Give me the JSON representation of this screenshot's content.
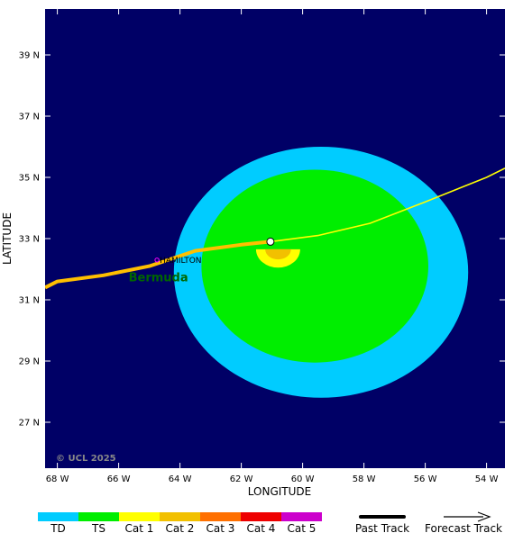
{
  "map": {
    "lon_range": [
      -68.4,
      -53.4
    ],
    "lat_range": [
      25.5,
      40.5
    ],
    "background_color": "#000066",
    "x_axis_title": "LONGITUDE",
    "y_axis_title": "LATITUDE",
    "x_ticks": [
      {
        "value": -68,
        "label": "68 W"
      },
      {
        "value": -66,
        "label": "66 W"
      },
      {
        "value": -64,
        "label": "64 W"
      },
      {
        "value": -62,
        "label": "62 W"
      },
      {
        "value": -60,
        "label": "60 W"
      },
      {
        "value": -58,
        "label": "58 W"
      },
      {
        "value": -56,
        "label": "56 W"
      },
      {
        "value": -54,
        "label": "54 W"
      }
    ],
    "y_ticks": [
      {
        "value": 39,
        "label": "39 N"
      },
      {
        "value": 37,
        "label": "37 N"
      },
      {
        "value": 35,
        "label": "35 N"
      },
      {
        "value": 33,
        "label": "33 N"
      },
      {
        "value": 31,
        "label": "31 N"
      },
      {
        "value": 29,
        "label": "29 N"
      },
      {
        "value": 27,
        "label": "27 N"
      }
    ],
    "copyright": "© UCL 2025"
  },
  "wind_field": {
    "center": {
      "lon": -59.4,
      "lat": 31.9
    },
    "td_zone": {
      "color": "#00ccff",
      "radius_lon": 4.8,
      "radius_lat": 4.1
    },
    "ts_zone": {
      "color": "#00ee00",
      "center": {
        "lon": -59.6,
        "lat": 32.1
      },
      "radius_lon": 3.7,
      "radius_lat": 3.15
    },
    "cat1_zone": {
      "color": "#ffff00",
      "center": {
        "lon": -60.8,
        "lat": 32.65
      },
      "radius_lon": 0.72,
      "radius_lat": 0.6
    },
    "cat2_zone": {
      "color": "#f2c000",
      "center": {
        "lon": -60.8,
        "lat": 32.65
      },
      "radius_lon": 0.42,
      "radius_lat": 0.33
    }
  },
  "storm_center": {
    "lon": -61.05,
    "lat": 32.9
  },
  "past_track": {
    "color": "#ffbf00",
    "points": [
      {
        "lon": -68.4,
        "lat": 31.4
      },
      {
        "lon": -68.0,
        "lat": 31.6
      },
      {
        "lon": -66.5,
        "lat": 31.8
      },
      {
        "lon": -65.0,
        "lat": 32.1
      },
      {
        "lon": -63.5,
        "lat": 32.6
      },
      {
        "lon": -62.0,
        "lat": 32.8
      },
      {
        "lon": -61.05,
        "lat": 32.9
      }
    ]
  },
  "forecast_track": {
    "color": "#ffff00",
    "points": [
      {
        "lon": -61.05,
        "lat": 32.9
      },
      {
        "lon": -59.5,
        "lat": 33.1
      },
      {
        "lon": -57.8,
        "lat": 33.5
      },
      {
        "lon": -56.0,
        "lat": 34.2
      },
      {
        "lon": -54.0,
        "lat": 35.0
      },
      {
        "lon": -53.4,
        "lat": 35.3
      }
    ]
  },
  "places": [
    {
      "name": "HAMILTON",
      "lon": -64.75,
      "lat": 32.3,
      "dot_color": "#ff00ff"
    },
    {
      "name": "Bermuda",
      "lon": -65.0,
      "lat": 31.75
    }
  ],
  "legend": {
    "categories": [
      {
        "label": "TD",
        "color": "#00ccff"
      },
      {
        "label": "TS",
        "color": "#00ee00"
      },
      {
        "label": "Cat 1",
        "color": "#ffff00"
      },
      {
        "label": "Cat 2",
        "color": "#f2c000"
      },
      {
        "label": "Cat 3",
        "color": "#ff7000"
      },
      {
        "label": "Cat 4",
        "color": "#ee0000"
      },
      {
        "label": "Cat 5",
        "color": "#cc00cc"
      }
    ],
    "past_track_label": "Past Track",
    "forecast_track_label": "Forecast Track"
  }
}
